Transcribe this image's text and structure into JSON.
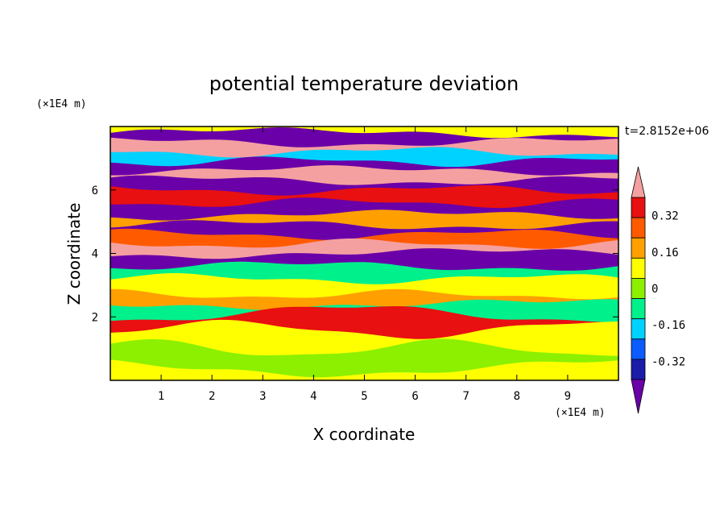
{
  "chart_data": {
    "type": "heatmap",
    "title": "potential temperature deviation",
    "xlabel": "X coordinate",
    "ylabel": "Z coordinate",
    "x_unit": "(×1E4 m)",
    "y_unit": "(×1E4 m)",
    "time_label": "t=2.8152e+06",
    "xlim": [
      0,
      10
    ],
    "ylim": [
      0,
      8
    ],
    "x_ticks": [
      "1",
      "2",
      "3",
      "4",
      "5",
      "6",
      "7",
      "8",
      "9"
    ],
    "y_ticks": [
      "2",
      "4",
      "6"
    ],
    "colorbar": {
      "labels": [
        "0.32",
        "0.16",
        "0",
        "-0.16",
        "-0.32"
      ],
      "levels": [
        -0.4,
        -0.32,
        -0.24,
        -0.16,
        -0.08,
        0,
        0.08,
        0.16,
        0.24,
        0.32,
        0.4
      ],
      "colors": [
        "#6a00a8",
        "#1c1ca8",
        "#0a5cff",
        "#00d2ff",
        "#00f08c",
        "#8cf000",
        "#ffff00",
        "#ffa000",
        "#ff5a00",
        "#e81010",
        "#f5a0a0"
      ],
      "extend": "both"
    },
    "bands": [
      {
        "z": 7.8,
        "value": -0.45
      },
      {
        "z": 7.5,
        "value": 0.45
      },
      {
        "z": 7.2,
        "value": -0.2
      },
      {
        "z": 6.9,
        "value": -0.45
      },
      {
        "z": 6.6,
        "value": 0.45
      },
      {
        "z": 6.3,
        "value": -0.45
      },
      {
        "z": 6.0,
        "value": 0.3
      },
      {
        "z": 5.6,
        "value": -0.45
      },
      {
        "z": 5.2,
        "value": 0.1
      },
      {
        "z": 4.9,
        "value": -0.45
      },
      {
        "z": 4.6,
        "value": 0.2
      },
      {
        "z": 4.3,
        "value": 0.45
      },
      {
        "z": 4.0,
        "value": -0.45
      },
      {
        "z": 3.6,
        "value": -0.1
      },
      {
        "z": 3.2,
        "value": 0.02
      },
      {
        "z": 2.7,
        "value": 0.1
      },
      {
        "z": 2.4,
        "value": -0.1
      },
      {
        "z": 2.1,
        "value": 0.3
      },
      {
        "z": 1.6,
        "value": 0.02
      },
      {
        "z": 1.0,
        "value": -0.02
      },
      {
        "z": 0.4,
        "value": 0.02
      }
    ]
  }
}
